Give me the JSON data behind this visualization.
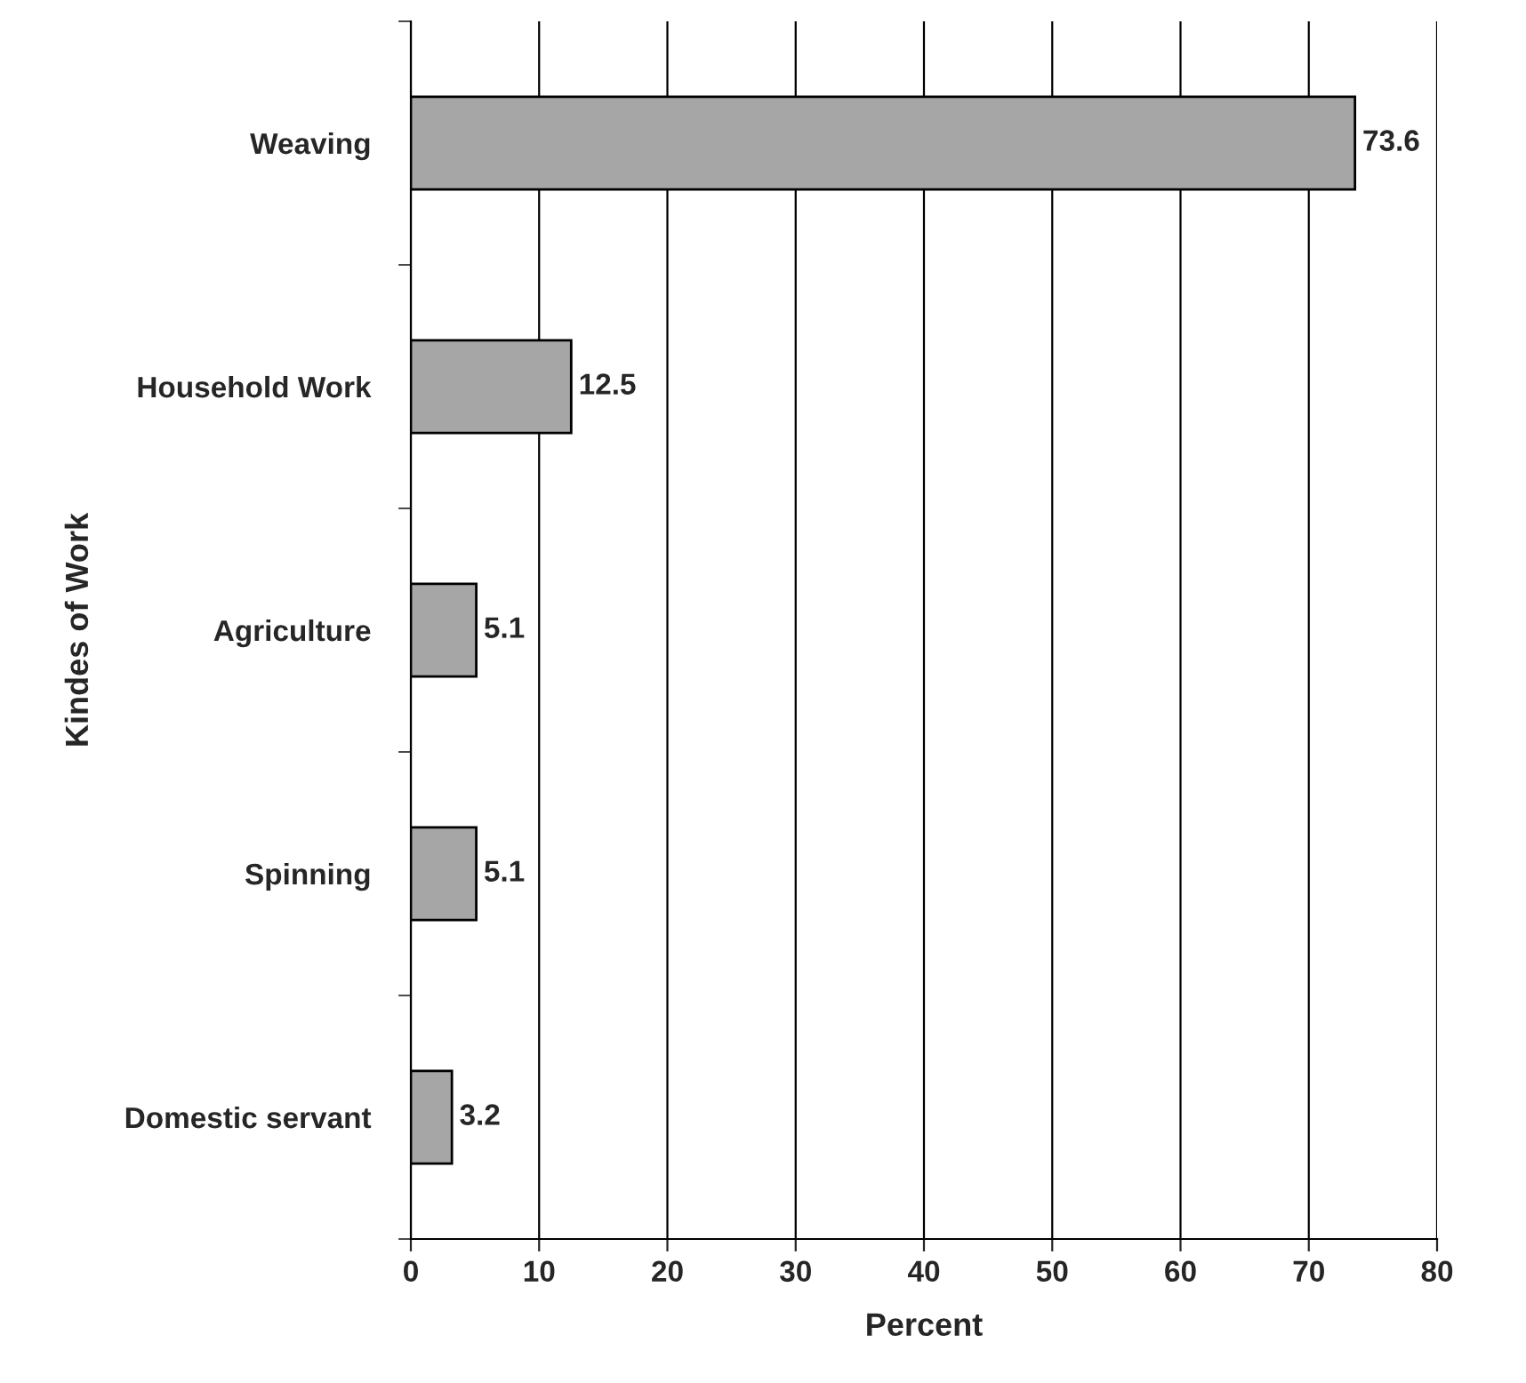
{
  "chart_data": {
    "type": "bar",
    "orientation": "horizontal",
    "xlabel": "Percent",
    "ylabel": "Kindes of Work",
    "categories": [
      "Weaving",
      "Household Work",
      "Agriculture",
      "Spinning",
      "Domestic servant"
    ],
    "values": [
      73.6,
      12.5,
      5.1,
      5.1,
      3.2
    ],
    "color": "#a6a6a6",
    "xlim": [
      0,
      80
    ],
    "xticks": [
      0,
      10,
      20,
      30,
      40,
      50,
      60,
      70,
      80
    ],
    "grid": "x",
    "data_labels": true
  }
}
